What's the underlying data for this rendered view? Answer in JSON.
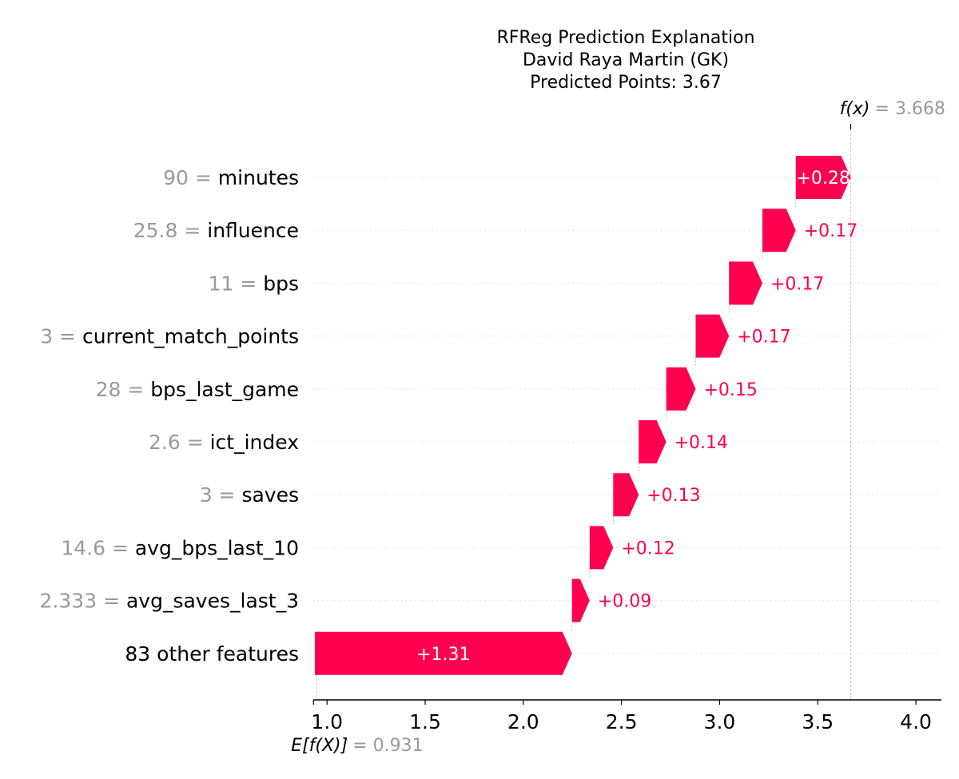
{
  "chart_data": {
    "type": "bar",
    "subtype": "waterfall",
    "title": [
      "RFReg Prediction Explanation",
      "David Raya Martin (GK)",
      "Predicted Points: 3.67"
    ],
    "base_value": 0.931,
    "base_label": "E[f(X)]",
    "base_value_text": "= 0.931",
    "output_value": 3.668,
    "output_label": "f(x)",
    "output_value_text": "= 3.668",
    "xlim": [
      0.93,
      4.13
    ],
    "xticks": [
      1.0,
      1.5,
      2.0,
      2.5,
      3.0,
      3.5,
      4.0
    ],
    "xtick_labels": [
      "1.0",
      "1.5",
      "2.0",
      "2.5",
      "3.0",
      "3.5",
      "4.0"
    ],
    "bar_color": "#ff0051",
    "features": [
      {
        "value": "90 =",
        "name": "minutes",
        "shap": 0.28,
        "label": "+0.28"
      },
      {
        "value": "25.8 =",
        "name": "influence",
        "shap": 0.17,
        "label": "+0.17"
      },
      {
        "value": "11 =",
        "name": "bps",
        "shap": 0.17,
        "label": "+0.17"
      },
      {
        "value": "3 =",
        "name": "current_match_points",
        "shap": 0.17,
        "label": "+0.17"
      },
      {
        "value": "28 =",
        "name": "bps_last_game",
        "shap": 0.15,
        "label": "+0.15"
      },
      {
        "value": "2.6 =",
        "name": "ict_index",
        "shap": 0.14,
        "label": "+0.14"
      },
      {
        "value": "3 =",
        "name": "saves",
        "shap": 0.13,
        "label": "+0.13"
      },
      {
        "value": "14.6 =",
        "name": "avg_bps_last_10",
        "shap": 0.12,
        "label": "+0.12"
      },
      {
        "value": "2.333 =",
        "name": "avg_saves_last_3",
        "shap": 0.09,
        "label": "+0.09"
      },
      {
        "value": "",
        "name": "83 other features",
        "shap": 1.31,
        "label": "+1.31"
      }
    ]
  }
}
